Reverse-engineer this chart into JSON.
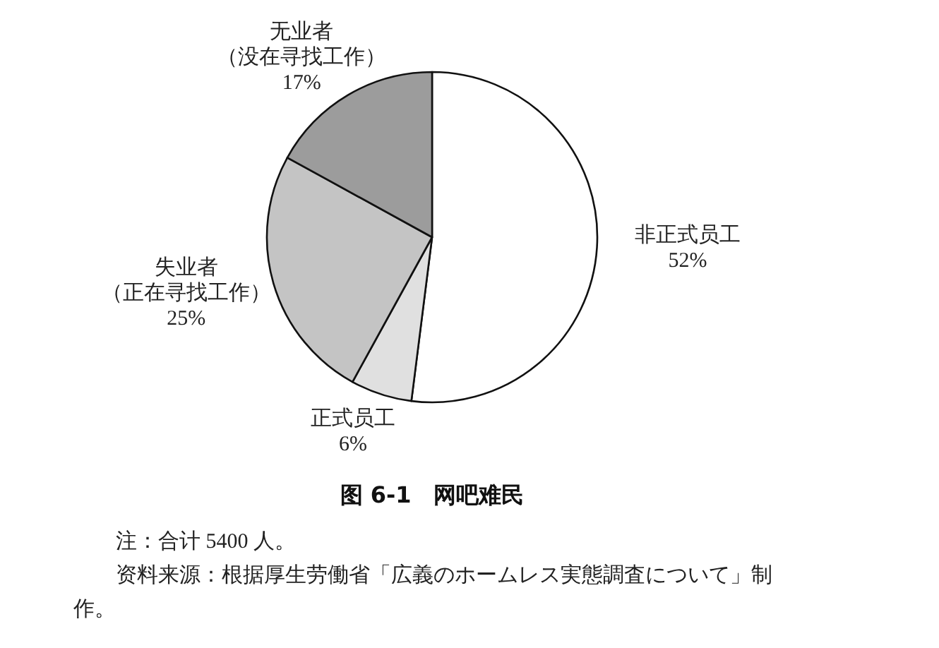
{
  "chart_data": {
    "type": "pie",
    "title": "图 6-1　网吧难民",
    "categories": [
      "非正式员工",
      "正式员工",
      "失业者（正在寻找工作）",
      "无业者（没在寻找工作）"
    ],
    "value_labels": [
      "52%",
      "6%",
      "25%",
      "17%"
    ],
    "values": [
      52,
      6,
      25,
      17
    ],
    "colors": [
      "#ffffff",
      "#e0e0e0",
      "#c4c4c4",
      "#9c9c9c"
    ],
    "annotations": [
      "注：合计 5400 人。",
      "资料来源：根据厚生劳働省「広義のホームレス実態調査について」制作。"
    ]
  }
}
